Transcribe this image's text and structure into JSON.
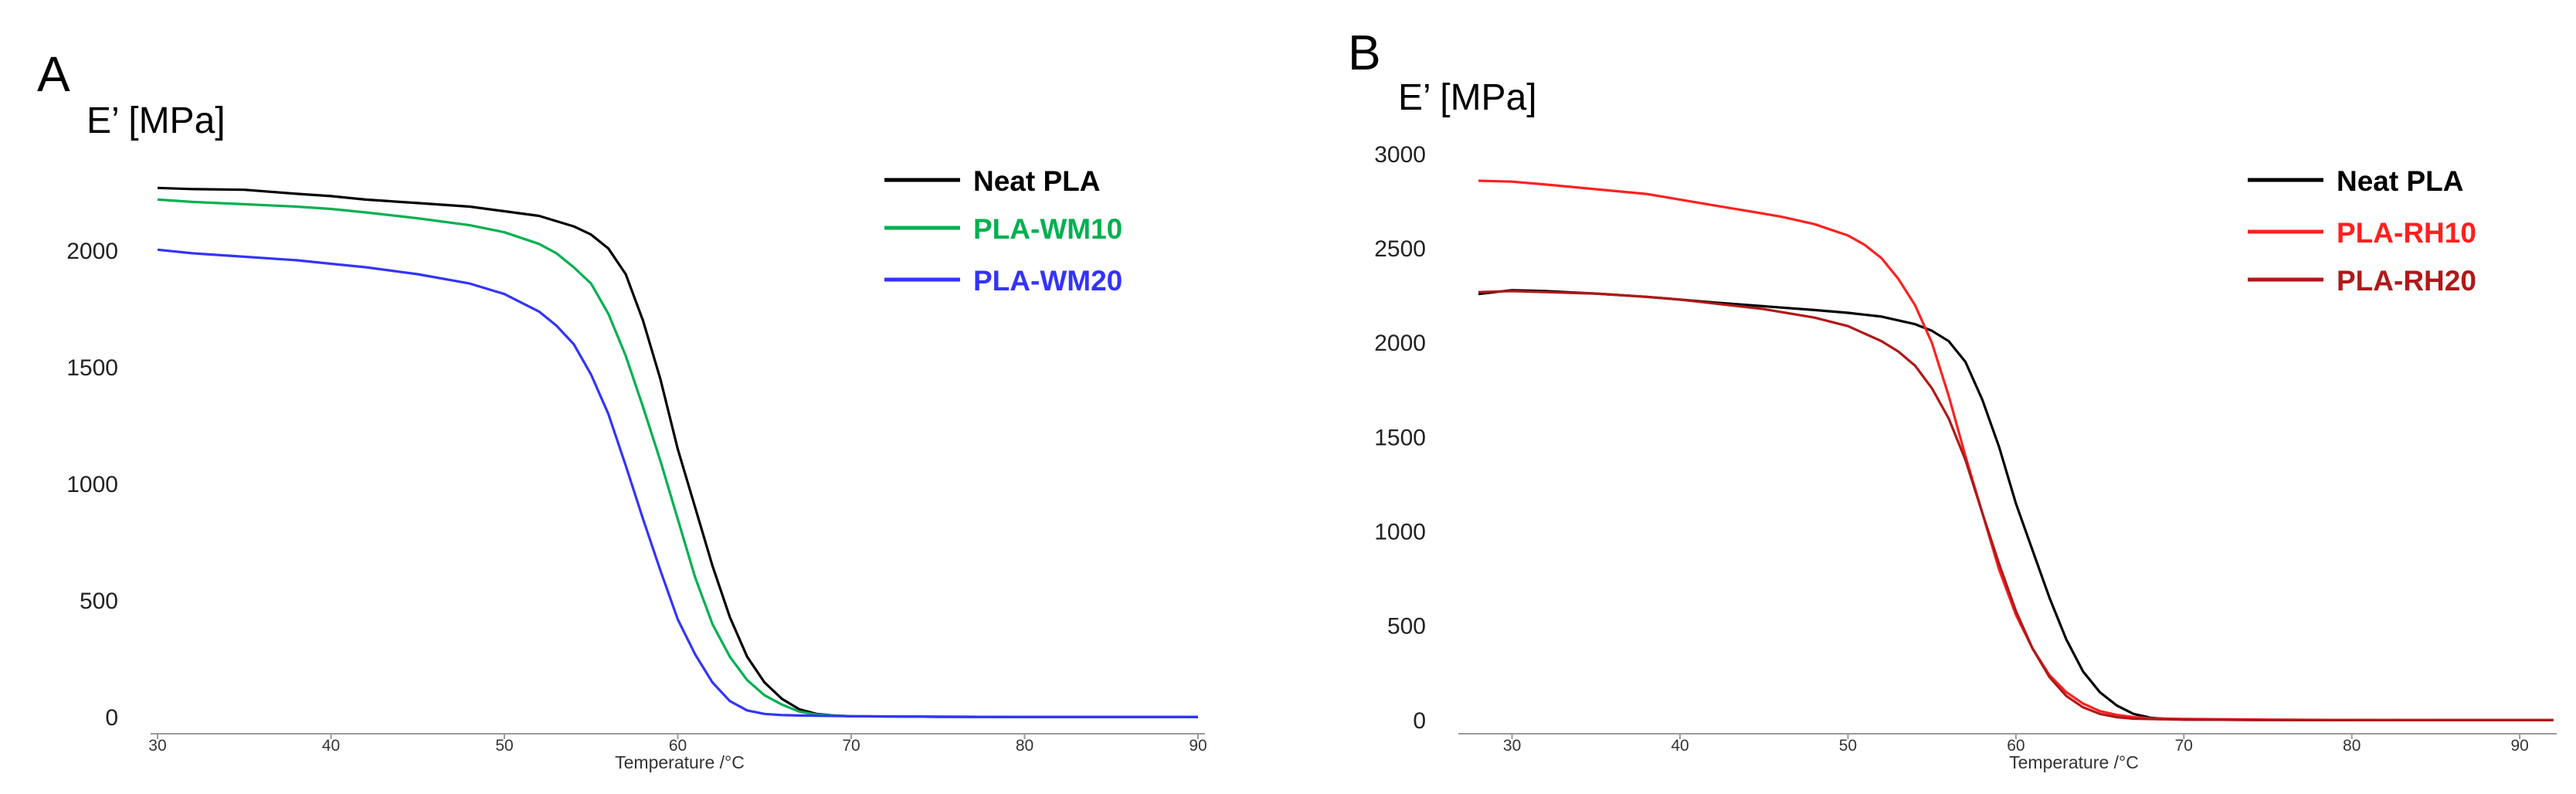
{
  "chart_data": [
    {
      "panel": "A",
      "type": "line",
      "ylabel": "E’ [MPa]",
      "xlabel": "Temperature /°C",
      "xlim": [
        29.6,
        90.4
      ],
      "ylim": [
        -70,
        2420
      ],
      "x_ticks": [
        30,
        40,
        50,
        60,
        70,
        80,
        90
      ],
      "y_ticks": [
        0,
        500,
        1000,
        1500,
        2000
      ],
      "legend_position": "top-right",
      "colors": {
        "Neat PLA": "#000000",
        "PLA-WM10": "#00b050",
        "PLA-WM20": "#3333ff"
      },
      "series": [
        {
          "name": "Neat PLA",
          "color": "#000000",
          "points": [
            [
              30,
              2270
            ],
            [
              32,
              2265
            ],
            [
              35,
              2262
            ],
            [
              38,
              2245
            ],
            [
              40,
              2235
            ],
            [
              42,
              2220
            ],
            [
              45,
              2205
            ],
            [
              48,
              2190
            ],
            [
              50,
              2170
            ],
            [
              52,
              2150
            ],
            [
              54,
              2105
            ],
            [
              55,
              2070
            ],
            [
              56,
              2010
            ],
            [
              57,
              1900
            ],
            [
              58,
              1700
            ],
            [
              59,
              1450
            ],
            [
              60,
              1150
            ],
            [
              61,
              900
            ],
            [
              62,
              650
            ],
            [
              63,
              430
            ],
            [
              64,
              260
            ],
            [
              65,
              150
            ],
            [
              66,
              80
            ],
            [
              67,
              35
            ],
            [
              68,
              15
            ],
            [
              69,
              8
            ],
            [
              70,
              5
            ],
            [
              75,
              3
            ],
            [
              80,
              2
            ],
            [
              85,
              2
            ],
            [
              90,
              2
            ]
          ]
        },
        {
          "name": "PLA-WM10",
          "color": "#00b050",
          "points": [
            [
              30,
              2220
            ],
            [
              32,
              2210
            ],
            [
              35,
              2200
            ],
            [
              38,
              2190
            ],
            [
              40,
              2180
            ],
            [
              42,
              2165
            ],
            [
              45,
              2140
            ],
            [
              48,
              2110
            ],
            [
              50,
              2080
            ],
            [
              52,
              2030
            ],
            [
              53,
              1990
            ],
            [
              54,
              1930
            ],
            [
              55,
              1860
            ],
            [
              56,
              1730
            ],
            [
              57,
              1550
            ],
            [
              58,
              1330
            ],
            [
              59,
              1100
            ],
            [
              60,
              850
            ],
            [
              61,
              600
            ],
            [
              62,
              400
            ],
            [
              63,
              260
            ],
            [
              64,
              160
            ],
            [
              65,
              95
            ],
            [
              66,
              55
            ],
            [
              67,
              25
            ],
            [
              68,
              12
            ],
            [
              69,
              8
            ],
            [
              70,
              5
            ],
            [
              75,
              3
            ],
            [
              80,
              2
            ],
            [
              85,
              2
            ],
            [
              90,
              2
            ]
          ]
        },
        {
          "name": "PLA-WM20",
          "color": "#3333ff",
          "points": [
            [
              30,
              2005
            ],
            [
              32,
              1990
            ],
            [
              35,
              1975
            ],
            [
              38,
              1960
            ],
            [
              40,
              1945
            ],
            [
              42,
              1930
            ],
            [
              45,
              1900
            ],
            [
              48,
              1860
            ],
            [
              50,
              1815
            ],
            [
              52,
              1740
            ],
            [
              53,
              1680
            ],
            [
              54,
              1600
            ],
            [
              55,
              1470
            ],
            [
              56,
              1300
            ],
            [
              57,
              1080
            ],
            [
              58,
              850
            ],
            [
              59,
              630
            ],
            [
              60,
              420
            ],
            [
              61,
              270
            ],
            [
              62,
              150
            ],
            [
              63,
              70
            ],
            [
              64,
              30
            ],
            [
              65,
              15
            ],
            [
              66,
              10
            ],
            [
              67,
              8
            ],
            [
              70,
              5
            ],
            [
              75,
              3
            ],
            [
              80,
              2
            ],
            [
              85,
              2
            ],
            [
              90,
              2
            ]
          ]
        }
      ]
    },
    {
      "panel": "B",
      "type": "line",
      "ylabel": "E’ [MPa]",
      "xlabel": "Temperature /°C",
      "xlim": [
        26.8,
        92.2
      ],
      "ylim": [
        -70,
        3040
      ],
      "x_ticks": [
        30,
        40,
        50,
        60,
        70,
        80,
        90
      ],
      "y_ticks": [
        0,
        500,
        1000,
        1500,
        2000,
        2500,
        3000
      ],
      "legend_position": "top-right",
      "colors": {
        "Neat PLA": "#000000",
        "PLA-RH10": "#ff2020",
        "PLA-RH20": "#b01818"
      },
      "series": [
        {
          "name": "Neat PLA",
          "color": "#000000",
          "points": [
            [
              28,
              2260
            ],
            [
              30,
              2280
            ],
            [
              32,
              2275
            ],
            [
              35,
              2262
            ],
            [
              38,
              2245
            ],
            [
              40,
              2230
            ],
            [
              42,
              2215
            ],
            [
              45,
              2195
            ],
            [
              48,
              2175
            ],
            [
              50,
              2160
            ],
            [
              52,
              2140
            ],
            [
              54,
              2100
            ],
            [
              55,
              2065
            ],
            [
              56,
              2010
            ],
            [
              57,
              1900
            ],
            [
              58,
              1700
            ],
            [
              59,
              1450
            ],
            [
              60,
              1150
            ],
            [
              61,
              900
            ],
            [
              62,
              650
            ],
            [
              63,
              430
            ],
            [
              64,
              260
            ],
            [
              65,
              150
            ],
            [
              66,
              80
            ],
            [
              67,
              35
            ],
            [
              68,
              15
            ],
            [
              69,
              8
            ],
            [
              70,
              5
            ],
            [
              75,
              3
            ],
            [
              80,
              2
            ],
            [
              85,
              2
            ],
            [
              92,
              2
            ]
          ]
        },
        {
          "name": "PLA-RH10",
          "color": "#ff2020",
          "points": [
            [
              28,
              2860
            ],
            [
              30,
              2855
            ],
            [
              32,
              2840
            ],
            [
              35,
              2815
            ],
            [
              38,
              2790
            ],
            [
              40,
              2760
            ],
            [
              42,
              2730
            ],
            [
              44,
              2700
            ],
            [
              46,
              2670
            ],
            [
              48,
              2630
            ],
            [
              50,
              2570
            ],
            [
              51,
              2520
            ],
            [
              52,
              2450
            ],
            [
              53,
              2340
            ],
            [
              54,
              2200
            ],
            [
              55,
              2000
            ],
            [
              56,
              1720
            ],
            [
              57,
              1400
            ],
            [
              58,
              1100
            ],
            [
              59,
              800
            ],
            [
              60,
              560
            ],
            [
              61,
              380
            ],
            [
              62,
              240
            ],
            [
              63,
              150
            ],
            [
              64,
              90
            ],
            [
              65,
              50
            ],
            [
              66,
              30
            ],
            [
              67,
              18
            ],
            [
              68,
              12
            ],
            [
              70,
              8
            ],
            [
              75,
              5
            ],
            [
              80,
              3
            ],
            [
              85,
              2
            ],
            [
              92,
              2
            ]
          ]
        },
        {
          "name": "PLA-RH20",
          "color": "#b01818",
          "points": [
            [
              28,
              2270
            ],
            [
              30,
              2275
            ],
            [
              32,
              2270
            ],
            [
              35,
              2262
            ],
            [
              38,
              2245
            ],
            [
              40,
              2230
            ],
            [
              42,
              2210
            ],
            [
              45,
              2180
            ],
            [
              48,
              2135
            ],
            [
              50,
              2090
            ],
            [
              52,
              2010
            ],
            [
              53,
              1955
            ],
            [
              54,
              1880
            ],
            [
              55,
              1760
            ],
            [
              56,
              1600
            ],
            [
              57,
              1380
            ],
            [
              58,
              1100
            ],
            [
              59,
              830
            ],
            [
              60,
              580
            ],
            [
              61,
              380
            ],
            [
              62,
              230
            ],
            [
              63,
              130
            ],
            [
              64,
              70
            ],
            [
              65,
              35
            ],
            [
              66,
              18
            ],
            [
              67,
              10
            ],
            [
              68,
              8
            ],
            [
              70,
              5
            ],
            [
              75,
              3
            ],
            [
              80,
              2
            ],
            [
              85,
              2
            ],
            [
              92,
              2
            ]
          ]
        }
      ]
    }
  ]
}
